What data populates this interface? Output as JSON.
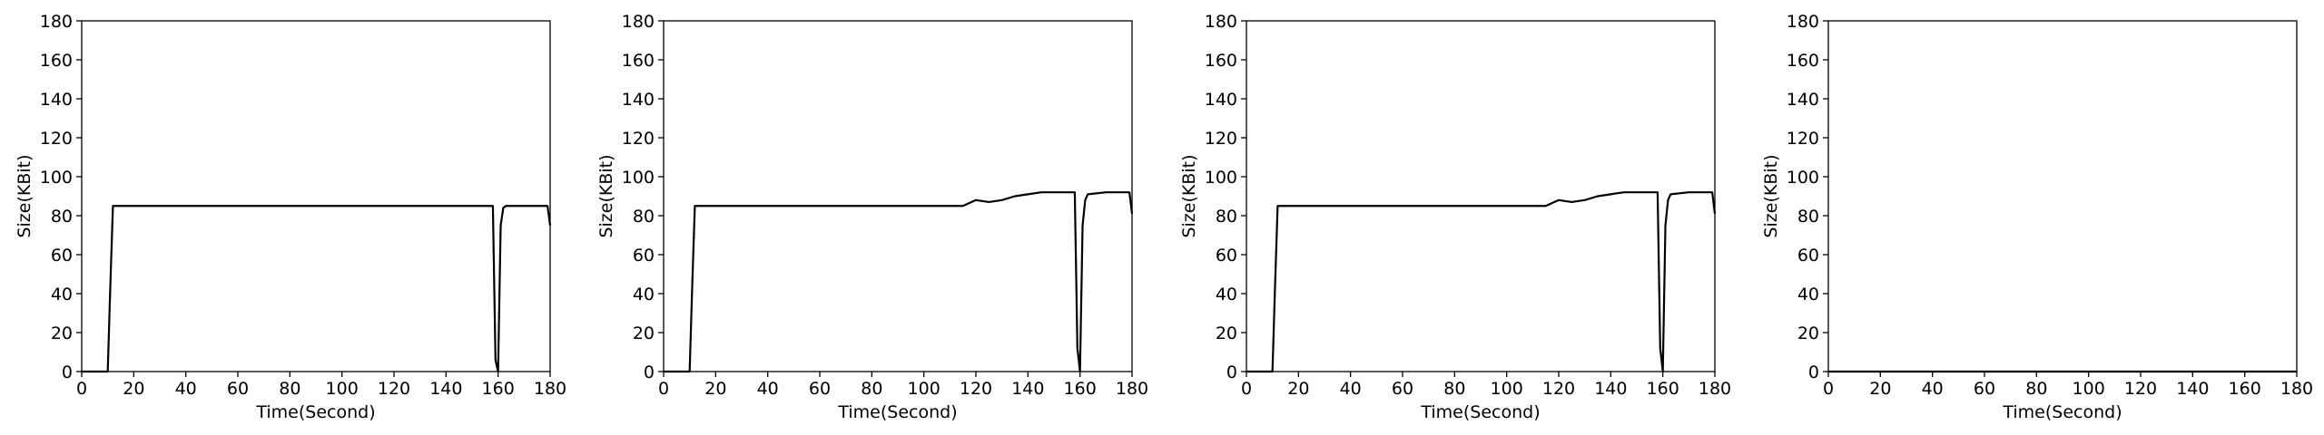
{
  "chart_data": [
    {
      "type": "line",
      "xlabel": "Time(Second)",
      "ylabel": "Size(KBit)",
      "xlim": [
        0,
        180
      ],
      "ylim": [
        0,
        180
      ],
      "xticks": [
        0,
        20,
        40,
        60,
        80,
        100,
        120,
        140,
        160,
        180
      ],
      "yticks": [
        0,
        20,
        40,
        60,
        80,
        100,
        120,
        140,
        160,
        180
      ],
      "grid": false,
      "series": [
        {
          "color": "#000000",
          "points": [
            [
              0,
              0
            ],
            [
              10,
              0
            ],
            [
              11,
              44
            ],
            [
              12,
              85
            ],
            [
              20,
              85
            ],
            [
              40,
              85
            ],
            [
              60,
              85
            ],
            [
              80,
              85
            ],
            [
              100,
              85
            ],
            [
              120,
              85
            ],
            [
              140,
              85
            ],
            [
              158,
              85
            ],
            [
              159,
              6
            ],
            [
              160,
              0
            ],
            [
              161,
              75
            ],
            [
              162,
              84
            ],
            [
              163,
              85
            ],
            [
              170,
              85
            ],
            [
              179,
              85
            ],
            [
              180,
              75
            ]
          ]
        }
      ]
    },
    {
      "type": "line",
      "xlabel": "Time(Second)",
      "ylabel": "Size(KBit)",
      "xlim": [
        0,
        180
      ],
      "ylim": [
        0,
        180
      ],
      "xticks": [
        0,
        20,
        40,
        60,
        80,
        100,
        120,
        140,
        160,
        180
      ],
      "yticks": [
        0,
        20,
        40,
        60,
        80,
        100,
        120,
        140,
        160,
        180
      ],
      "grid": false,
      "series": [
        {
          "color": "#000000",
          "points": [
            [
              0,
              0
            ],
            [
              10,
              0
            ],
            [
              11,
              44
            ],
            [
              12,
              85
            ],
            [
              20,
              85
            ],
            [
              40,
              85
            ],
            [
              60,
              85
            ],
            [
              80,
              85
            ],
            [
              100,
              85
            ],
            [
              115,
              85
            ],
            [
              120,
              88
            ],
            [
              125,
              87
            ],
            [
              130,
              88
            ],
            [
              135,
              90
            ],
            [
              140,
              91
            ],
            [
              145,
              92
            ],
            [
              150,
              92
            ],
            [
              155,
              92
            ],
            [
              158,
              92
            ],
            [
              159,
              12
            ],
            [
              160,
              0
            ],
            [
              161,
              75
            ],
            [
              162,
              88
            ],
            [
              163,
              91
            ],
            [
              170,
              92
            ],
            [
              179,
              92
            ],
            [
              180,
              81
            ]
          ]
        }
      ]
    },
    {
      "type": "line",
      "xlabel": "Time(Second)",
      "ylabel": "Size(KBit)",
      "xlim": [
        0,
        180
      ],
      "ylim": [
        0,
        180
      ],
      "xticks": [
        0,
        20,
        40,
        60,
        80,
        100,
        120,
        140,
        160,
        180
      ],
      "yticks": [
        0,
        20,
        40,
        60,
        80,
        100,
        120,
        140,
        160,
        180
      ],
      "grid": false,
      "series": [
        {
          "color": "#000000",
          "points": [
            [
              0,
              0
            ],
            [
              10,
              0
            ],
            [
              11,
              44
            ],
            [
              12,
              85
            ],
            [
              20,
              85
            ],
            [
              40,
              85
            ],
            [
              60,
              85
            ],
            [
              80,
              85
            ],
            [
              100,
              85
            ],
            [
              115,
              85
            ],
            [
              120,
              88
            ],
            [
              125,
              87
            ],
            [
              130,
              88
            ],
            [
              135,
              90
            ],
            [
              140,
              91
            ],
            [
              145,
              92
            ],
            [
              150,
              92
            ],
            [
              155,
              92
            ],
            [
              158,
              92
            ],
            [
              159,
              12
            ],
            [
              160,
              0
            ],
            [
              161,
              75
            ],
            [
              162,
              88
            ],
            [
              163,
              91
            ],
            [
              170,
              92
            ],
            [
              179,
              92
            ],
            [
              180,
              81
            ]
          ]
        }
      ]
    },
    {
      "type": "line",
      "xlabel": "Time(Second)",
      "ylabel": "Size(KBit)",
      "xlim": [
        0,
        180
      ],
      "ylim": [
        0,
        180
      ],
      "xticks": [
        0,
        20,
        40,
        60,
        80,
        100,
        120,
        140,
        160,
        180
      ],
      "yticks": [
        0,
        20,
        40,
        60,
        80,
        100,
        120,
        140,
        160,
        180
      ],
      "grid": false,
      "series": [
        {
          "color": "#000000",
          "points": [
            [
              0,
              0
            ],
            [
              180,
              0
            ]
          ]
        }
      ]
    }
  ]
}
